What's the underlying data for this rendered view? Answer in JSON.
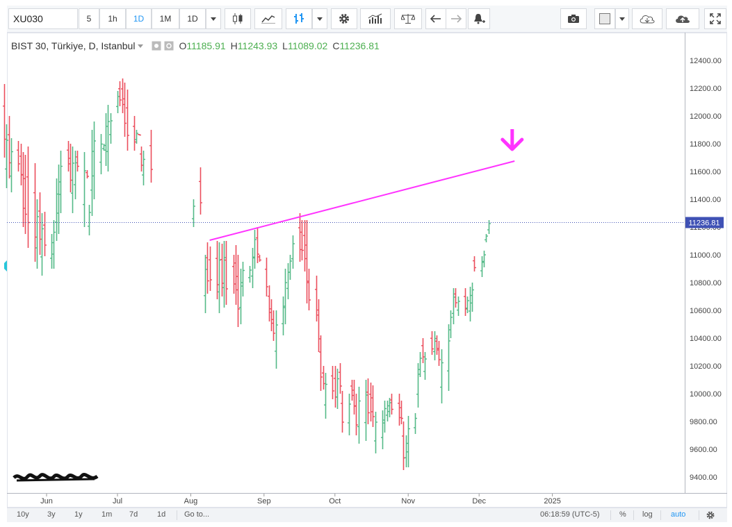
{
  "toolbar": {
    "symbol": "XU030",
    "intervals": [
      "5",
      "1h",
      "1D",
      "1M",
      "1D"
    ],
    "active_interval": "1D",
    "icons": [
      "dropdown-caret-icon",
      "candles-icon",
      "line-chart-icon",
      "bars-icon",
      "dropdown-caret-icon",
      "gear-icon",
      "indicators-icon",
      "compare-icon",
      "undo-icon",
      "redo-icon",
      "alert-icon",
      "camera-icon",
      "color-square-icon",
      "dropdown-caret-icon",
      "cloud-download-icon",
      "cloud-upload-icon",
      "fullscreen-icon"
    ]
  },
  "legend": {
    "title": "BIST 30, Türkiye, D, Istanbul",
    "open_label": "O",
    "open": "11185.91",
    "high_label": "H",
    "high": "11243.93",
    "low_label": "L",
    "low": "11089.02",
    "close_label": "C",
    "close": "11236.81"
  },
  "chart_data": {
    "type": "bar",
    "subtype": "ohlc",
    "title": "BIST 30, Türkiye, D, Istanbul",
    "ylim": [
      9300,
      12500
    ],
    "y_ticks": [
      "12400.00",
      "12200.00",
      "12000.00",
      "11800.00",
      "11600.00",
      "11400.00",
      "11200.00",
      "11000.00",
      "10800.00",
      "10600.00",
      "10400.00",
      "10200.00",
      "10000.00",
      "9800.00",
      "9600.00",
      "9400.00"
    ],
    "x_ticks": [
      "Jun",
      "Jul",
      "Aug",
      "Sep",
      "Oct",
      "Nov",
      "Dec",
      "2025"
    ],
    "last_price": "11236.81",
    "up_color": "#53b987",
    "down_color": "#eb4d5c",
    "trendline_color": "#ff33ff",
    "grid": false,
    "trendline": {
      "from": {
        "date": "2024-08-09",
        "value": 11105
      },
      "to": {
        "date": "2024-12-16",
        "value": 11675
      }
    },
    "arrow": {
      "date": "2024-12-15",
      "value": 11800,
      "direction": "down"
    },
    "segments": [
      {
        "start": "2024-05-14",
        "points": [
          [
            11700,
            12230
          ],
          [
            11480,
            11940
          ],
          [
            11550,
            12000
          ],
          [
            11450,
            11840
          ],
          [
            11600,
            11820
          ],
          [
            11500,
            11800
          ],
          [
            11200,
            11740
          ],
          [
            11150,
            11720
          ],
          [
            11050,
            11780
          ],
          [
            10950,
            11660
          ],
          [
            10900,
            11400
          ],
          [
            11000,
            11450
          ],
          [
            10850,
            11300
          ],
          [
            10990,
            11310
          ],
          [
            10900,
            11150
          ],
          [
            10900,
            11250
          ],
          [
            11100,
            11550
          ],
          [
            11150,
            11650
          ],
          [
            11300,
            11750
          ],
          [
            11600,
            11820
          ],
          [
            11450,
            11800
          ],
          [
            11300,
            11780
          ],
          [
            11400,
            11750
          ],
          [
            11600,
            11750
          ],
          [
            11200,
            11740
          ],
          [
            11550,
            11610
          ],
          [
            11140,
            11360
          ],
          [
            11280,
            11900
          ],
          [
            11400,
            11960
          ],
          [
            11580,
            11870
          ],
          [
            11750,
            11800
          ],
          [
            11640,
            12020
          ],
          [
            11600,
            12080
          ],
          [
            11800,
            12020
          ],
          [
            12020,
            12180
          ],
          [
            12070,
            12250
          ],
          [
            12020,
            12270
          ],
          [
            11850,
            12240
          ],
          [
            11750,
            12190
          ],
          [
            11750,
            12000
          ],
          [
            11800,
            11900
          ],
          [
            11860,
            11870
          ],
          [
            11600,
            11780
          ],
          [
            11500,
            11750
          ],
          [
            11520,
            11900
          ]
        ]
      },
      {
        "start": "2024-08-02",
        "points": [
          [
            11200,
            11400
          ],
          [
            11290,
            11630
          ]
        ]
      },
      {
        "start": "2024-08-07",
        "points": [
          [
            10580,
            11000
          ],
          [
            10720,
            11090
          ],
          [
            10740,
            11060
          ],
          [
            10680,
            11100
          ],
          [
            10580,
            11090
          ],
          [
            10700,
            11080
          ],
          [
            10620,
            11100
          ],
          [
            10640,
            11100
          ],
          [
            10720,
            11000
          ],
          [
            10640,
            11070
          ],
          [
            10480,
            11000
          ],
          [
            10500,
            10900
          ],
          [
            10700,
            10950
          ],
          [
            10800,
            10920
          ],
          [
            10760,
            11050
          ],
          [
            10900,
            11180
          ],
          [
            10940,
            11200
          ],
          [
            10950,
            11000
          ],
          [
            10700,
            10980
          ],
          [
            10520,
            10780
          ],
          [
            10450,
            10680
          ],
          [
            10380,
            10600
          ],
          [
            10180,
            10600
          ],
          [
            10420,
            10700
          ],
          [
            10500,
            10900
          ],
          [
            10680,
            10940
          ],
          [
            10820,
            11000
          ],
          [
            10900,
            11140
          ],
          [
            10950,
            11300
          ],
          [
            10960,
            11250
          ],
          [
            10880,
            11250
          ],
          [
            10650,
            11250
          ],
          [
            10600,
            10900
          ],
          [
            10520,
            10850
          ],
          [
            10300,
            10680
          ],
          [
            10020,
            10420
          ],
          [
            10030,
            10200
          ],
          [
            9820,
            10150
          ],
          [
            9960,
            10200
          ],
          [
            9900,
            10200
          ],
          [
            9890,
            10180
          ],
          [
            10000,
            10220
          ],
          [
            9720,
            10020
          ],
          [
            9700,
            10000
          ],
          [
            9950,
            10100
          ],
          [
            9850,
            10100
          ],
          [
            9700,
            10000
          ],
          [
            9640,
            10050
          ],
          [
            9660,
            10100
          ],
          [
            9780,
            10110
          ],
          [
            9800,
            10080
          ],
          [
            9760,
            10060
          ],
          [
            9570,
            9870
          ],
          [
            9600,
            9880
          ],
          [
            9720,
            9950
          ],
          [
            9800,
            9950
          ],
          [
            9830,
            9970
          ],
          [
            9850,
            10000
          ],
          [
            9770,
            10000
          ],
          [
            9780,
            9950
          ],
          [
            9450,
            9800
          ],
          [
            9470,
            9700
          ],
          [
            9470,
            9840
          ],
          [
            9710,
            9860
          ],
          [
            9900,
            10220
          ],
          [
            10120,
            10300
          ],
          [
            10220,
            10400
          ],
          [
            10100,
            10300
          ],
          [
            10280,
            10450
          ],
          [
            10240,
            10450
          ],
          [
            10280,
            10420
          ],
          [
            10200,
            10380
          ],
          [
            9930,
            10320
          ],
          [
            10020,
            10500
          ],
          [
            10400,
            10600
          ],
          [
            10500,
            10760
          ],
          [
            10620,
            10760
          ],
          [
            10560,
            10700
          ],
          [
            10560,
            10760
          ],
          [
            10580,
            10700
          ],
          [
            10520,
            10770
          ],
          [
            10590,
            10800
          ],
          [
            10880,
            10990
          ],
          [
            10840,
            10990
          ],
          [
            10910,
            11030
          ],
          [
            11090,
            11150
          ],
          [
            11150,
            11250
          ]
        ]
      }
    ],
    "last_close": 11236.81
  },
  "bottombar": {
    "ranges": [
      "10y",
      "3y",
      "1y",
      "1m",
      "7d",
      "1d"
    ],
    "goto": "Go to...",
    "clock": "06:18:59 (UTC-5)",
    "percent": "%",
    "log": "log",
    "auto": "auto"
  }
}
